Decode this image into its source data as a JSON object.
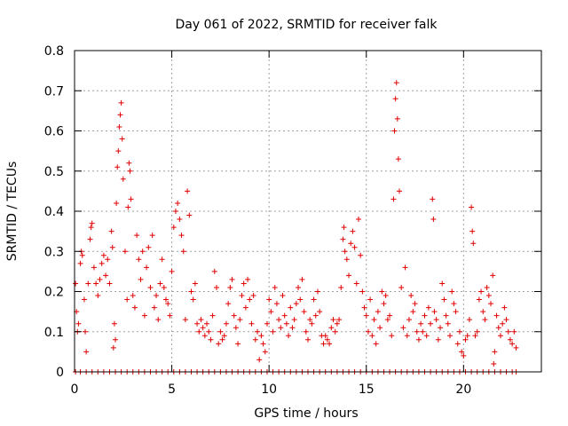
{
  "chart_data": {
    "type": "scatter",
    "title": "Day 061 of 2022, SRMTID for receiver falk",
    "xlabel": "GPS time / hours",
    "ylabel": "SRMTID / TECUs",
    "xlim": [
      0,
      24
    ],
    "ylim": [
      0,
      0.8
    ],
    "xticks": [
      0,
      5,
      10,
      15,
      20
    ],
    "xtick_labels": [
      "0",
      "5",
      "10",
      "15",
      "20"
    ],
    "yticks": [
      0,
      0.1,
      0.2,
      0.3,
      0.4,
      0.5,
      0.6,
      0.7,
      0.8
    ],
    "ytick_labels": [
      "0",
      "0.1",
      "0.2",
      "0.3",
      "0.4",
      "0.5",
      "0.6",
      "0.7",
      "0.8"
    ],
    "grid": true,
    "marker": "+",
    "marker_color": "#e00000",
    "series": [
      {
        "name": "SRMTID",
        "points": [
          [
            0.05,
            0.22
          ],
          [
            0.1,
            0.15
          ],
          [
            0.15,
            0.1
          ],
          [
            0.2,
            0.12
          ],
          [
            0.3,
            0.27
          ],
          [
            0.35,
            0.3
          ],
          [
            0.4,
            0.29
          ],
          [
            0.5,
            0.18
          ],
          [
            0.55,
            0.1
          ],
          [
            0.6,
            0.05
          ],
          [
            0.7,
            0.22
          ],
          [
            0.8,
            0.33
          ],
          [
            0.85,
            0.36
          ],
          [
            0.9,
            0.37
          ],
          [
            1.0,
            0.26
          ],
          [
            1.1,
            0.22
          ],
          [
            1.2,
            0.19
          ],
          [
            1.3,
            0.23
          ],
          [
            1.4,
            0.27
          ],
          [
            1.5,
            0.29
          ],
          [
            1.6,
            0.24
          ],
          [
            1.7,
            0.28
          ],
          [
            1.8,
            0.22
          ],
          [
            1.9,
            0.35
          ],
          [
            1.95,
            0.31
          ],
          [
            2.0,
            0.06
          ],
          [
            2.05,
            0.12
          ],
          [
            2.1,
            0.08
          ],
          [
            2.15,
            0.42
          ],
          [
            2.2,
            0.51
          ],
          [
            2.25,
            0.55
          ],
          [
            2.3,
            0.61
          ],
          [
            2.35,
            0.64
          ],
          [
            2.4,
            0.67
          ],
          [
            2.45,
            0.58
          ],
          [
            2.5,
            0.48
          ],
          [
            2.6,
            0.3
          ],
          [
            2.7,
            0.18
          ],
          [
            2.75,
            0.41
          ],
          [
            2.8,
            0.52
          ],
          [
            2.85,
            0.5
          ],
          [
            2.9,
            0.43
          ],
          [
            3.0,
            0.19
          ],
          [
            3.1,
            0.16
          ],
          [
            3.2,
            0.34
          ],
          [
            3.3,
            0.28
          ],
          [
            3.4,
            0.23
          ],
          [
            3.5,
            0.3
          ],
          [
            3.6,
            0.14
          ],
          [
            3.7,
            0.26
          ],
          [
            3.8,
            0.31
          ],
          [
            3.9,
            0.21
          ],
          [
            4.0,
            0.34
          ],
          [
            4.1,
            0.16
          ],
          [
            4.2,
            0.19
          ],
          [
            4.3,
            0.13
          ],
          [
            4.4,
            0.22
          ],
          [
            4.5,
            0.28
          ],
          [
            4.6,
            0.21
          ],
          [
            4.7,
            0.18
          ],
          [
            4.8,
            0.17
          ],
          [
            4.9,
            0.14
          ],
          [
            5.0,
            0.25
          ],
          [
            5.1,
            0.36
          ],
          [
            5.2,
            0.4
          ],
          [
            5.3,
            0.42
          ],
          [
            5.4,
            0.38
          ],
          [
            5.5,
            0.34
          ],
          [
            5.6,
            0.3
          ],
          [
            5.7,
            0.13
          ],
          [
            5.8,
            0.45
          ],
          [
            5.9,
            0.39
          ],
          [
            6.0,
            0.2
          ],
          [
            6.1,
            0.18
          ],
          [
            6.2,
            0.22
          ],
          [
            6.3,
            0.12
          ],
          [
            6.4,
            0.1
          ],
          [
            6.5,
            0.13
          ],
          [
            6.6,
            0.11
          ],
          [
            6.7,
            0.09
          ],
          [
            6.8,
            0.12
          ],
          [
            6.9,
            0.1
          ],
          [
            7.0,
            0.08
          ],
          [
            7.1,
            0.14
          ],
          [
            7.2,
            0.25
          ],
          [
            7.3,
            0.21
          ],
          [
            7.4,
            0.07
          ],
          [
            7.5,
            0.1
          ],
          [
            7.6,
            0.08
          ],
          [
            7.7,
            0.09
          ],
          [
            7.8,
            0.12
          ],
          [
            7.9,
            0.17
          ],
          [
            8.0,
            0.21
          ],
          [
            8.1,
            0.23
          ],
          [
            8.2,
            0.14
          ],
          [
            8.3,
            0.11
          ],
          [
            8.4,
            0.07
          ],
          [
            8.5,
            0.13
          ],
          [
            8.6,
            0.19
          ],
          [
            8.7,
            0.22
          ],
          [
            8.8,
            0.16
          ],
          [
            8.9,
            0.23
          ],
          [
            9.0,
            0.18
          ],
          [
            9.1,
            0.12
          ],
          [
            9.2,
            0.19
          ],
          [
            9.3,
            0.08
          ],
          [
            9.4,
            0.1
          ],
          [
            9.5,
            0.03
          ],
          [
            9.6,
            0.09
          ],
          [
            9.7,
            0.07
          ],
          [
            9.8,
            0.05
          ],
          [
            9.9,
            0.12
          ],
          [
            10.0,
            0.18
          ],
          [
            10.1,
            0.15
          ],
          [
            10.2,
            0.1
          ],
          [
            10.3,
            0.21
          ],
          [
            10.4,
            0.17
          ],
          [
            10.5,
            0.13
          ],
          [
            10.6,
            0.11
          ],
          [
            10.7,
            0.19
          ],
          [
            10.8,
            0.14
          ],
          [
            10.9,
            0.12
          ],
          [
            11.0,
            0.09
          ],
          [
            11.1,
            0.16
          ],
          [
            11.2,
            0.11
          ],
          [
            11.3,
            0.13
          ],
          [
            11.4,
            0.17
          ],
          [
            11.5,
            0.21
          ],
          [
            11.6,
            0.18
          ],
          [
            11.7,
            0.23
          ],
          [
            11.8,
            0.15
          ],
          [
            11.9,
            0.1
          ],
          [
            12.0,
            0.08
          ],
          [
            12.1,
            0.13
          ],
          [
            12.2,
            0.12
          ],
          [
            12.3,
            0.18
          ],
          [
            12.4,
            0.14
          ],
          [
            12.5,
            0.2
          ],
          [
            12.6,
            0.15
          ],
          [
            12.7,
            0.09
          ],
          [
            12.8,
            0.07
          ],
          [
            12.9,
            0.09
          ],
          [
            13.0,
            0.08
          ],
          [
            13.1,
            0.07
          ],
          [
            13.2,
            0.11
          ],
          [
            13.3,
            0.13
          ],
          [
            13.4,
            0.1
          ],
          [
            13.5,
            0.12
          ],
          [
            13.6,
            0.13
          ],
          [
            13.7,
            0.21
          ],
          [
            13.8,
            0.33
          ],
          [
            13.85,
            0.36
          ],
          [
            13.9,
            0.3
          ],
          [
            14.0,
            0.28
          ],
          [
            14.1,
            0.24
          ],
          [
            14.2,
            0.32
          ],
          [
            14.3,
            0.35
          ],
          [
            14.4,
            0.31
          ],
          [
            14.5,
            0.22
          ],
          [
            14.6,
            0.38
          ],
          [
            14.7,
            0.29
          ],
          [
            14.8,
            0.2
          ],
          [
            14.9,
            0.16
          ],
          [
            15.0,
            0.14
          ],
          [
            15.1,
            0.1
          ],
          [
            15.2,
            0.18
          ],
          [
            15.3,
            0.09
          ],
          [
            15.4,
            0.13
          ],
          [
            15.5,
            0.07
          ],
          [
            15.6,
            0.15
          ],
          [
            15.7,
            0.11
          ],
          [
            15.8,
            0.2
          ],
          [
            15.9,
            0.17
          ],
          [
            16.0,
            0.19
          ],
          [
            16.1,
            0.13
          ],
          [
            16.2,
            0.14
          ],
          [
            16.3,
            0.09
          ],
          [
            16.4,
            0.43
          ],
          [
            16.45,
            0.6
          ],
          [
            16.5,
            0.68
          ],
          [
            16.55,
            0.72
          ],
          [
            16.6,
            0.63
          ],
          [
            16.65,
            0.53
          ],
          [
            16.7,
            0.45
          ],
          [
            16.8,
            0.21
          ],
          [
            16.9,
            0.11
          ],
          [
            17.0,
            0.26
          ],
          [
            17.1,
            0.09
          ],
          [
            17.2,
            0.13
          ],
          [
            17.3,
            0.19
          ],
          [
            17.4,
            0.15
          ],
          [
            17.5,
            0.17
          ],
          [
            17.6,
            0.1
          ],
          [
            17.7,
            0.08
          ],
          [
            17.8,
            0.12
          ],
          [
            17.9,
            0.1
          ],
          [
            18.0,
            0.14
          ],
          [
            18.1,
            0.09
          ],
          [
            18.2,
            0.16
          ],
          [
            18.3,
            0.12
          ],
          [
            18.4,
            0.43
          ],
          [
            18.45,
            0.38
          ],
          [
            18.5,
            0.15
          ],
          [
            18.6,
            0.13
          ],
          [
            18.7,
            0.08
          ],
          [
            18.8,
            0.11
          ],
          [
            18.9,
            0.22
          ],
          [
            19.0,
            0.18
          ],
          [
            19.1,
            0.14
          ],
          [
            19.2,
            0.12
          ],
          [
            19.3,
            0.09
          ],
          [
            19.4,
            0.2
          ],
          [
            19.5,
            0.17
          ],
          [
            19.6,
            0.15
          ],
          [
            19.7,
            0.07
          ],
          [
            19.8,
            0.1
          ],
          [
            19.9,
            0.05
          ],
          [
            20.0,
            0.04
          ],
          [
            20.1,
            0.08
          ],
          [
            20.2,
            0.09
          ],
          [
            20.3,
            0.13
          ],
          [
            20.4,
            0.41
          ],
          [
            20.45,
            0.35
          ],
          [
            20.5,
            0.32
          ],
          [
            20.6,
            0.09
          ],
          [
            20.7,
            0.1
          ],
          [
            20.8,
            0.18
          ],
          [
            20.9,
            0.2
          ],
          [
            21.0,
            0.15
          ],
          [
            21.1,
            0.13
          ],
          [
            21.2,
            0.21
          ],
          [
            21.3,
            0.19
          ],
          [
            21.4,
            0.17
          ],
          [
            21.5,
            0.24
          ],
          [
            21.55,
            0.02
          ],
          [
            21.6,
            0.05
          ],
          [
            21.7,
            0.14
          ],
          [
            21.8,
            0.11
          ],
          [
            21.9,
            0.09
          ],
          [
            22.0,
            0.12
          ],
          [
            22.1,
            0.16
          ],
          [
            22.2,
            0.13
          ],
          [
            22.3,
            0.1
          ],
          [
            22.4,
            0.08
          ],
          [
            22.5,
            0.07
          ],
          [
            22.6,
            0.1
          ],
          [
            22.7,
            0.06
          ]
        ]
      },
      {
        "name": "SRMTID zero values",
        "points": [
          [
            0.05,
            0
          ],
          [
            0.3,
            0
          ],
          [
            0.6,
            0
          ],
          [
            0.9,
            0
          ],
          [
            1.2,
            0
          ],
          [
            1.5,
            0
          ],
          [
            1.8,
            0
          ],
          [
            2.1,
            0
          ],
          [
            2.4,
            0
          ],
          [
            2.7,
            0
          ],
          [
            3.0,
            0
          ],
          [
            3.3,
            0
          ],
          [
            3.6,
            0
          ],
          [
            3.9,
            0
          ],
          [
            4.2,
            0
          ],
          [
            4.5,
            0
          ],
          [
            4.8,
            0
          ],
          [
            5.1,
            0
          ],
          [
            5.4,
            0
          ],
          [
            5.7,
            0
          ],
          [
            6.0,
            0
          ],
          [
            6.3,
            0
          ],
          [
            6.6,
            0
          ],
          [
            6.9,
            0
          ],
          [
            7.2,
            0
          ],
          [
            7.5,
            0
          ],
          [
            7.8,
            0
          ],
          [
            8.1,
            0
          ],
          [
            8.4,
            0
          ],
          [
            8.7,
            0
          ],
          [
            9.0,
            0
          ],
          [
            9.3,
            0
          ],
          [
            9.6,
            0
          ],
          [
            9.9,
            0
          ],
          [
            10.2,
            0
          ],
          [
            10.5,
            0
          ],
          [
            10.8,
            0
          ],
          [
            11.1,
            0
          ],
          [
            11.4,
            0
          ],
          [
            11.7,
            0
          ],
          [
            12.0,
            0
          ],
          [
            12.3,
            0
          ],
          [
            12.6,
            0
          ],
          [
            12.9,
            0
          ],
          [
            13.2,
            0
          ],
          [
            13.5,
            0
          ],
          [
            13.8,
            0
          ],
          [
            14.1,
            0
          ],
          [
            14.4,
            0
          ],
          [
            14.7,
            0
          ],
          [
            15.0,
            0
          ],
          [
            15.3,
            0
          ],
          [
            15.6,
            0
          ],
          [
            15.9,
            0
          ],
          [
            16.2,
            0
          ],
          [
            16.5,
            0
          ],
          [
            16.8,
            0
          ],
          [
            17.1,
            0
          ],
          [
            17.4,
            0
          ],
          [
            17.7,
            0
          ],
          [
            18.0,
            0
          ],
          [
            18.3,
            0
          ],
          [
            18.6,
            0
          ],
          [
            18.9,
            0
          ],
          [
            19.2,
            0
          ],
          [
            19.5,
            0
          ],
          [
            19.8,
            0
          ],
          [
            20.1,
            0
          ],
          [
            20.4,
            0
          ],
          [
            20.7,
            0
          ],
          [
            21.0,
            0
          ],
          [
            21.3,
            0
          ],
          [
            21.6,
            0
          ],
          [
            21.9,
            0
          ],
          [
            22.2,
            0
          ],
          [
            22.5,
            0
          ],
          [
            22.7,
            0
          ]
        ]
      }
    ]
  }
}
